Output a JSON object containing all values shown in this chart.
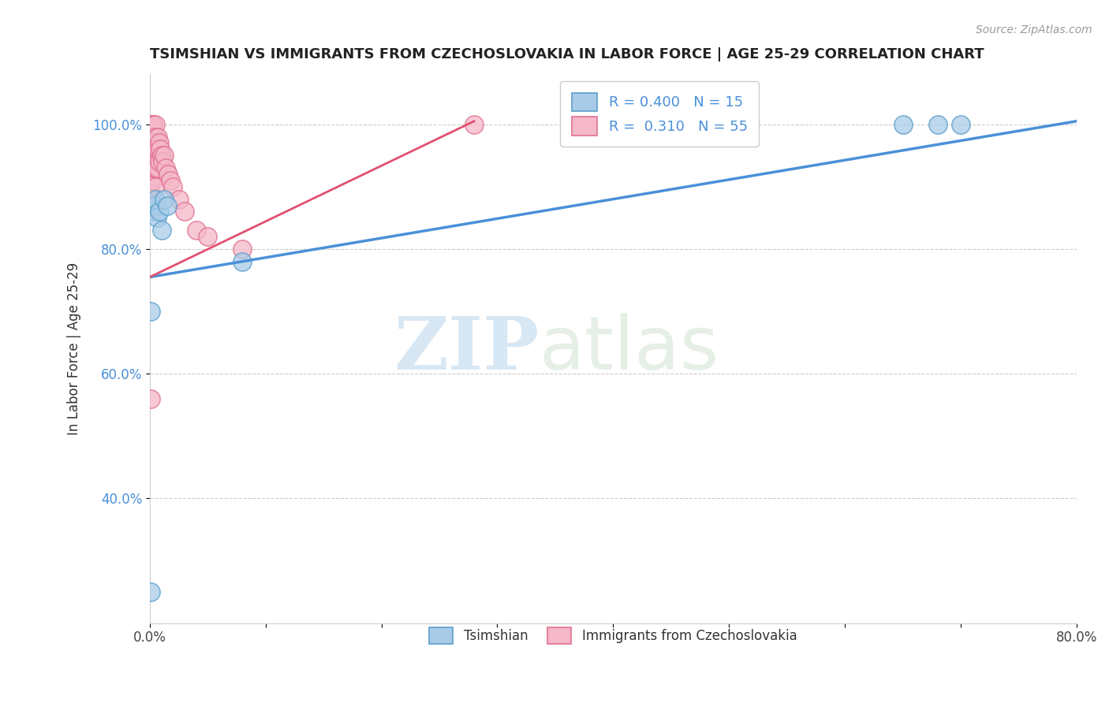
{
  "title": "TSIMSHIAN VS IMMIGRANTS FROM CZECHOSLOVAKIA IN LABOR FORCE | AGE 25-29 CORRELATION CHART",
  "source_text": "Source: ZipAtlas.com",
  "ylabel": "In Labor Force | Age 25-29",
  "xlim": [
    0.0,
    0.8
  ],
  "ylim": [
    0.2,
    1.08
  ],
  "x_ticks": [
    0.0,
    0.1,
    0.2,
    0.3,
    0.4,
    0.5,
    0.6,
    0.7,
    0.8
  ],
  "x_tick_labels": [
    "0.0%",
    "",
    "",
    "",
    "",
    "",
    "",
    "",
    "80.0%"
  ],
  "y_ticks": [
    0.4,
    0.6,
    0.8,
    1.0
  ],
  "y_tick_labels": [
    "40.0%",
    "60.0%",
    "80.0%",
    "100.0%"
  ],
  "grid_color": "#cccccc",
  "background_color": "#ffffff",
  "tsimshian_color": "#a8cce8",
  "tsimshian_edge_color": "#5a9ec9",
  "czech_color": "#f4b8c8",
  "czech_edge_color": "#e07090",
  "tsimshian_R": 0.4,
  "tsimshian_N": 15,
  "czech_R": 0.31,
  "czech_N": 55,
  "tsimshian_line_color": "#4A90D9",
  "czech_line_color": "#E05070",
  "watermark_zip": "ZIP",
  "watermark_atlas": "atlas",
  "tsimshian_x": [
    0.001,
    0.001,
    0.002,
    0.003,
    0.004,
    0.005,
    0.006,
    0.008,
    0.01,
    0.012,
    0.015,
    0.08,
    0.65,
    0.68,
    0.7
  ],
  "tsimshian_y": [
    0.7,
    0.25,
    0.86,
    0.87,
    0.87,
    0.88,
    0.85,
    0.86,
    0.83,
    0.88,
    0.87,
    0.78,
    1.0,
    1.0,
    1.0
  ],
  "czech_x": [
    0.001,
    0.001,
    0.001,
    0.001,
    0.001,
    0.001,
    0.001,
    0.001,
    0.001,
    0.001,
    0.001,
    0.001,
    0.001,
    0.001,
    0.001,
    0.001,
    0.002,
    0.002,
    0.002,
    0.002,
    0.002,
    0.002,
    0.003,
    0.003,
    0.003,
    0.003,
    0.004,
    0.004,
    0.004,
    0.005,
    0.005,
    0.005,
    0.005,
    0.005,
    0.006,
    0.006,
    0.007,
    0.007,
    0.007,
    0.008,
    0.008,
    0.009,
    0.01,
    0.011,
    0.012,
    0.014,
    0.016,
    0.018,
    0.02,
    0.025,
    0.03,
    0.04,
    0.05,
    0.08,
    0.28
  ],
  "czech_y": [
    1.0,
    1.0,
    1.0,
    1.0,
    1.0,
    1.0,
    1.0,
    1.0,
    0.98,
    0.97,
    0.96,
    0.95,
    0.93,
    0.91,
    0.89,
    0.56,
    1.0,
    1.0,
    0.98,
    0.96,
    0.94,
    0.91,
    1.0,
    0.98,
    0.96,
    0.93,
    0.98,
    0.96,
    0.93,
    1.0,
    0.98,
    0.96,
    0.93,
    0.9,
    0.97,
    0.94,
    0.98,
    0.96,
    0.93,
    0.97,
    0.94,
    0.96,
    0.95,
    0.94,
    0.95,
    0.93,
    0.92,
    0.91,
    0.9,
    0.88,
    0.86,
    0.83,
    0.82,
    0.8,
    1.0
  ],
  "tsim_line_x0": 0.0,
  "tsim_line_y0": 0.755,
  "tsim_line_x1": 0.8,
  "tsim_line_y1": 1.005,
  "czech_line_x0": 0.0,
  "czech_line_y0": 0.755,
  "czech_line_x1": 0.28,
  "czech_line_y1": 1.005
}
